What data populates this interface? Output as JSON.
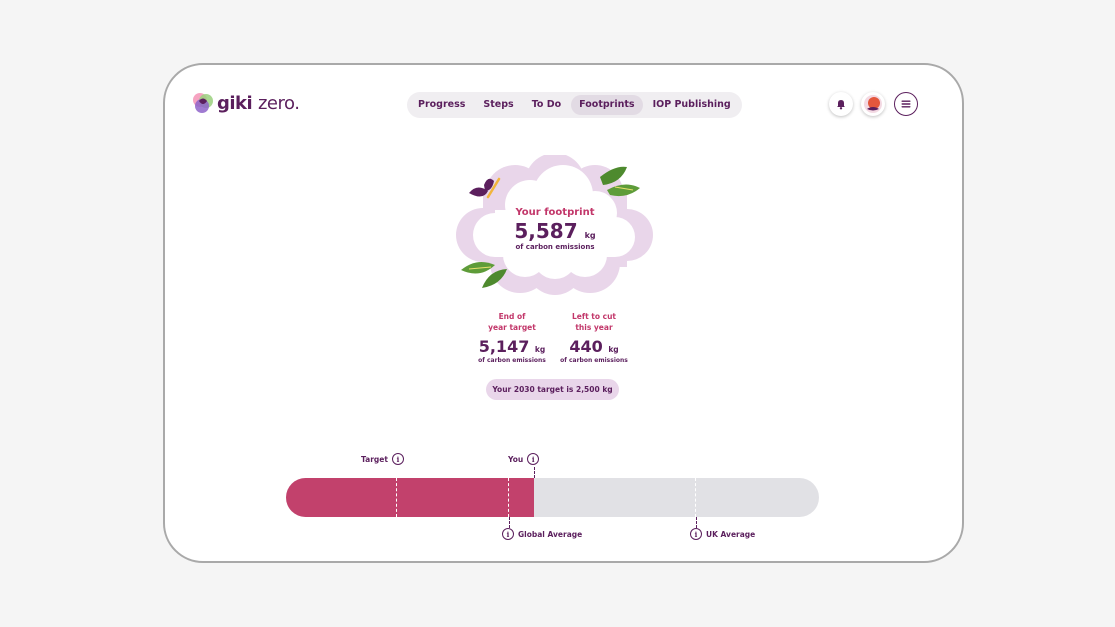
{
  "brand": {
    "name_part1": "giki",
    "name_part2": "zero."
  },
  "nav": {
    "items": [
      {
        "label": "Progress"
      },
      {
        "label": "Steps"
      },
      {
        "label": "To Do"
      },
      {
        "label": "Footprints",
        "active": true
      },
      {
        "label": "IOP Publishing"
      }
    ]
  },
  "header_icons": [
    "notification-bell-icon",
    "avatar-icon",
    "menu-icon"
  ],
  "footprint": {
    "label": "Your footprint",
    "value": "5,587",
    "unit": "kg",
    "sub": "of carbon emissions"
  },
  "stats": [
    {
      "label": "End of\nyear target",
      "value": "5,147",
      "unit": "kg",
      "sub": "of carbon emissions"
    },
    {
      "label": "Left to cut\nthis year",
      "value": "440",
      "unit": "kg",
      "sub": "of carbon emissions"
    }
  ],
  "target_pill": "Your 2030 target is 2,500 kg",
  "comparison": {
    "fill_fraction": 0.465,
    "markers": [
      {
        "label": "Target"
      },
      {
        "label": "You"
      },
      {
        "label": "Global Average"
      },
      {
        "label": "UK Average"
      }
    ]
  },
  "colors": {
    "primary": "#5b1f5d",
    "accent": "#c2416c",
    "cloud": "#e9d6ea",
    "track": "#e1e1e5"
  }
}
